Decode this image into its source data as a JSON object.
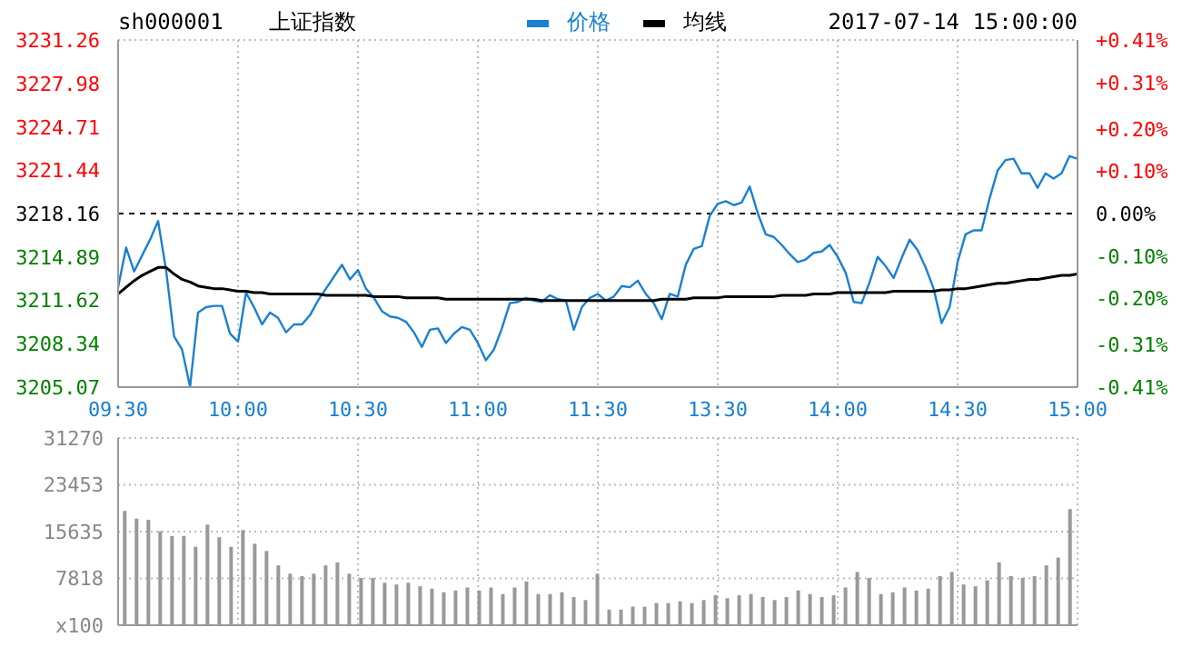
{
  "chart_data": [
    {
      "type": "line",
      "title": "上证指数",
      "subtitle": "sh000001",
      "annotations": [
        "2017-07-14 15:00:00"
      ],
      "categories": [
        "09:30",
        null,
        null,
        null,
        null,
        null,
        null,
        null,
        null,
        null,
        null,
        null,
        null,
        null,
        null,
        "10:00",
        null,
        null,
        null,
        null,
        null,
        null,
        null,
        null,
        null,
        null,
        null,
        null,
        null,
        null,
        "10:30",
        null,
        null,
        null,
        null,
        null,
        null,
        null,
        null,
        null,
        null,
        null,
        null,
        null,
        null,
        "11:00",
        null,
        null,
        null,
        null,
        null,
        null,
        null,
        null,
        null,
        null,
        null,
        null,
        null,
        null,
        "11:30",
        null,
        null,
        null,
        null,
        null,
        null,
        null,
        null,
        null,
        null,
        null,
        null,
        null,
        null,
        "13:30",
        null,
        null,
        null,
        null,
        null,
        null,
        null,
        null,
        null,
        null,
        null,
        null,
        null,
        null,
        "14:00",
        null,
        null,
        null,
        null,
        null,
        null,
        null,
        null,
        null,
        null,
        null,
        null,
        null,
        null,
        "14:30",
        null,
        null,
        null,
        null,
        null,
        null,
        null,
        null,
        null,
        null,
        null,
        null,
        null,
        null,
        "15:00"
      ],
      "ylim": [
        3205.07,
        3231.26
      ],
      "yticks": [
        3205.07,
        3208.34,
        3211.62,
        3214.89,
        3218.16,
        3221.44,
        3224.71,
        3227.98,
        3231.26
      ],
      "y2lim": [
        -0.41,
        0.41
      ],
      "y2ticks": [
        {
          "value": -0.41,
          "label": "-0.41%"
        },
        {
          "value": -0.31,
          "label": "-0.31%"
        },
        {
          "value": -0.2,
          "label": "-0.20%"
        },
        {
          "value": -0.1,
          "label": "-0.10%"
        },
        {
          "value": 0,
          "label": "0.00%"
        },
        {
          "value": 0.1,
          "label": "+0.10%"
        },
        {
          "value": 0.2,
          "label": "+0.20%"
        },
        {
          "value": 0.31,
          "label": "+0.31%"
        },
        {
          "value": 0.41,
          "label": "+0.41%"
        }
      ],
      "ref_lines": [
        {
          "axis": "y",
          "value": 3218.16,
          "color": "#000000",
          "line_style": "dashed"
        }
      ],
      "grid": true,
      "legend": "top",
      "marker": "none",
      "series": [
        {
          "name": "价格",
          "color": "#1a80d0",
          "values": [
            3212.6,
            3215.6,
            3213.8,
            3215.0,
            3216.2,
            3217.6,
            3213.9,
            3208.9,
            3207.9,
            3205.1,
            3210.7,
            3211.1,
            3211.2,
            3211.2,
            3209.1,
            3208.5,
            3212.2,
            3211.1,
            3209.8,
            3210.7,
            3210.3,
            3209.2,
            3209.8,
            3209.8,
            3210.5,
            3211.6,
            3212.5,
            3213.4,
            3214.3,
            3213.2,
            3213.9,
            3212.5,
            3211.8,
            3210.8,
            3210.4,
            3210.3,
            3210.0,
            3209.2,
            3208.1,
            3209.4,
            3209.5,
            3208.4,
            3209.1,
            3209.6,
            3209.4,
            3208.4,
            3207.1,
            3207.9,
            3209.5,
            3211.4,
            3211.5,
            3211.8,
            3211.6,
            3211.5,
            3212.0,
            3211.7,
            3211.6,
            3209.4,
            3211.1,
            3211.8,
            3212.1,
            3211.6,
            3211.9,
            3212.7,
            3212.6,
            3213.1,
            3212.1,
            3211.4,
            3210.2,
            3212.1,
            3211.9,
            3214.3,
            3215.5,
            3215.7,
            3218.0,
            3218.9,
            3219.1,
            3218.8,
            3219.0,
            3220.2,
            3218.2,
            3216.6,
            3216.4,
            3215.8,
            3215.1,
            3214.5,
            3214.7,
            3215.2,
            3215.3,
            3215.8,
            3214.9,
            3213.7,
            3211.5,
            3211.4,
            3213.0,
            3214.9,
            3214.2,
            3213.3,
            3214.8,
            3216.2,
            3215.4,
            3214.1,
            3212.5,
            3209.9,
            3211.1,
            3214.5,
            3216.6,
            3216.9,
            3216.9,
            3219.3,
            3221.4,
            3222.2,
            3222.3,
            3221.2,
            3221.2,
            3220.1,
            3221.2,
            3220.8,
            3221.2,
            3222.5,
            3222.3
          ]
        },
        {
          "name": "均线",
          "color": "#000000",
          "values": [
            3212.1,
            3212.6,
            3213.1,
            3213.5,
            3213.8,
            3214.1,
            3214.1,
            3213.6,
            3213.2,
            3213.0,
            3212.7,
            3212.6,
            3212.5,
            3212.5,
            3212.4,
            3212.3,
            3212.3,
            3212.2,
            3212.2,
            3212.1,
            3212.1,
            3212.1,
            3212.1,
            3212.1,
            3212.1,
            3212.1,
            3212.0,
            3212.0,
            3212.0,
            3212.0,
            3212.0,
            3212.0,
            3211.9,
            3211.9,
            3211.9,
            3211.9,
            3211.8,
            3211.8,
            3211.8,
            3211.8,
            3211.8,
            3211.7,
            3211.7,
            3211.7,
            3211.7,
            3211.7,
            3211.7,
            3211.7,
            3211.7,
            3211.7,
            3211.7,
            3211.7,
            3211.7,
            3211.6,
            3211.6,
            3211.6,
            3211.6,
            3211.6,
            3211.6,
            3211.6,
            3211.6,
            3211.6,
            3211.6,
            3211.6,
            3211.6,
            3211.6,
            3211.6,
            3211.6,
            3211.7,
            3211.7,
            3211.7,
            3211.7,
            3211.8,
            3211.8,
            3211.8,
            3211.8,
            3211.9,
            3211.9,
            3211.9,
            3211.9,
            3211.9,
            3211.9,
            3211.9,
            3212.0,
            3212.0,
            3212.0,
            3212.0,
            3212.1,
            3212.1,
            3212.1,
            3212.2,
            3212.2,
            3212.2,
            3212.2,
            3212.2,
            3212.2,
            3212.2,
            3212.3,
            3212.3,
            3212.3,
            3212.3,
            3212.3,
            3212.3,
            3212.4,
            3212.4,
            3212.5,
            3212.5,
            3212.6,
            3212.7,
            3212.8,
            3212.9,
            3212.9,
            3213.0,
            3213.1,
            3213.2,
            3213.2,
            3213.3,
            3213.4,
            3213.5,
            3213.5,
            3213.6
          ]
        }
      ]
    },
    {
      "type": "bar",
      "tick_labels": "y",
      "grid": true,
      "categories": [
        null,
        null,
        null,
        null,
        null,
        null,
        null,
        null,
        null,
        null,
        null,
        null,
        null,
        null,
        null,
        null,
        null,
        null,
        null,
        null,
        null,
        null,
        null,
        null,
        null,
        null,
        null,
        null,
        null,
        null,
        null,
        null,
        null,
        null,
        null,
        null,
        null,
        null,
        null,
        null,
        null,
        null,
        null,
        null,
        null,
        null,
        null,
        null,
        null,
        null,
        null,
        null,
        null,
        null,
        null,
        null,
        null,
        null,
        null,
        null,
        null,
        null,
        null,
        null,
        null,
        null,
        null,
        null,
        null,
        null,
        null,
        null,
        null,
        null,
        null,
        null,
        null,
        null,
        null,
        null,
        null
      ],
      "ylim": [
        0,
        31270
      ],
      "yticks": [
        {
          "value": 0,
          "label": "x100"
        },
        7818,
        15635,
        23453,
        31270
      ],
      "color": "#999999",
      "values": [
        19100,
        17800,
        17600,
        15700,
        14900,
        14900,
        13100,
        16800,
        14700,
        13100,
        15900,
        13600,
        12400,
        10000,
        8600,
        8200,
        8600,
        10000,
        10500,
        8600,
        7900,
        7900,
        7100,
        6800,
        7100,
        6500,
        6100,
        5500,
        5800,
        6300,
        5800,
        6300,
        5200,
        6300,
        7300,
        5200,
        5200,
        5500,
        4700,
        4200,
        8600,
        2600,
        2600,
        3100,
        3100,
        3700,
        3700,
        4000,
        3700,
        4200,
        5000,
        4500,
        5000,
        5200,
        4700,
        4200,
        4700,
        5800,
        5200,
        4700,
        5000,
        6300,
        8900,
        7900,
        5200,
        5500,
        6300,
        5800,
        6100,
        8200,
        8900,
        6800,
        6500,
        7500,
        10500,
        8200,
        7900,
        8200,
        10000,
        11300,
        19400
      ]
    }
  ]
}
